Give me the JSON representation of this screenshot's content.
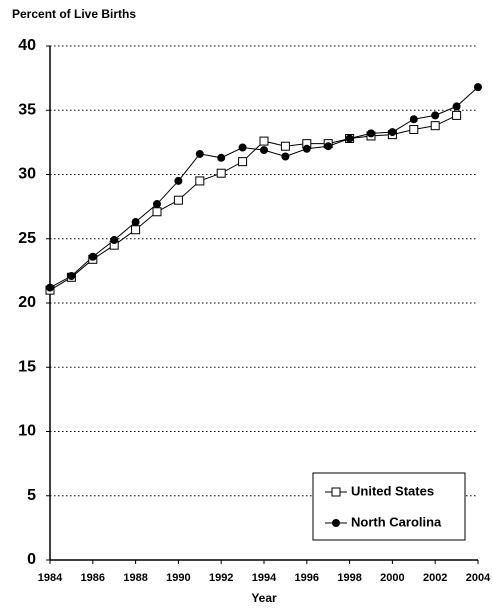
{
  "chart_data": {
    "type": "line",
    "y_label": "Percent of Live Births",
    "x_label": "Year",
    "x": [
      1984,
      1985,
      1986,
      1987,
      1988,
      1989,
      1990,
      1991,
      1992,
      1993,
      1994,
      1995,
      1996,
      1997,
      1998,
      1999,
      2000,
      2001,
      2002,
      2003,
      2004
    ],
    "series": [
      {
        "name": "United States",
        "color": "#000000",
        "marker": "open-square",
        "values": [
          21.0,
          22.0,
          23.4,
          24.5,
          25.7,
          27.1,
          28.0,
          29.5,
          30.1,
          31.0,
          32.6,
          32.2,
          32.4,
          32.4,
          32.8,
          33.0,
          33.1,
          33.5,
          33.8,
          34.6,
          null
        ]
      },
      {
        "name": "North Carolina",
        "color": "#000000",
        "marker": "filled-circle",
        "values": [
          21.2,
          22.1,
          23.6,
          24.9,
          26.3,
          27.7,
          29.5,
          31.6,
          31.3,
          32.1,
          31.9,
          31.4,
          32.0,
          32.2,
          32.8,
          33.2,
          33.3,
          34.3,
          34.6,
          35.3,
          36.8
        ]
      }
    ],
    "xlim": [
      1984,
      2004
    ],
    "xticks": [
      1984,
      1986,
      1988,
      1990,
      1992,
      1994,
      1996,
      1998,
      2000,
      2002,
      2004
    ],
    "ylim": [
      0,
      40
    ],
    "yticks": [
      0,
      5,
      10,
      15,
      20,
      25,
      30,
      35,
      40
    ],
    "grid": true,
    "legend": "lower right"
  }
}
